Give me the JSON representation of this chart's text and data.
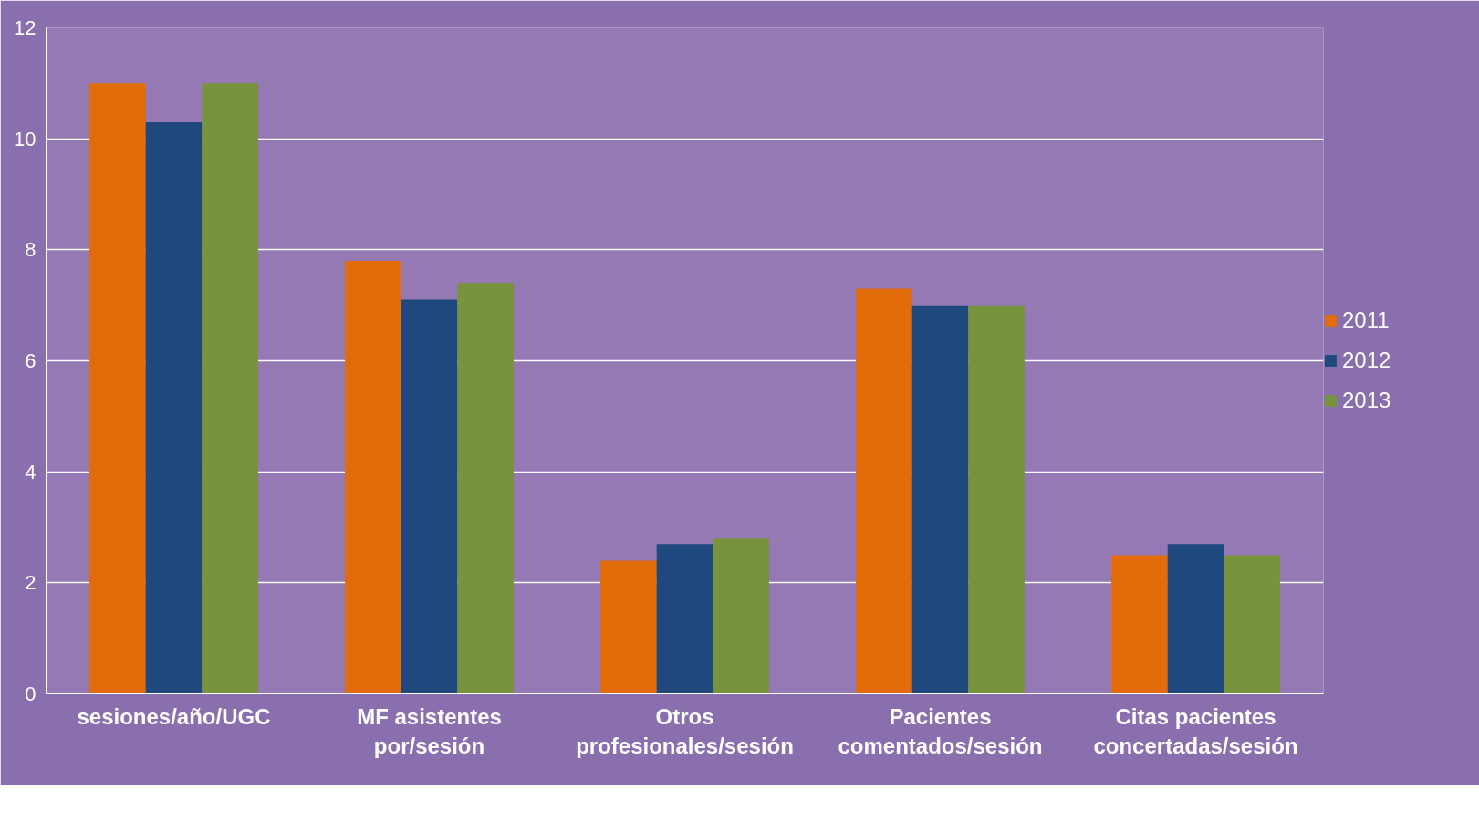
{
  "chart_data": {
    "type": "bar",
    "categories": [
      "sesiones/año/UGC",
      "MF asistentes por/sesión",
      "Otros profesionales/sesión",
      "Pacientes comentados/sesión",
      "Citas pacientes concertadas/sesión"
    ],
    "series": [
      {
        "name": "2011",
        "color": "#e36c0a",
        "values": [
          11,
          7.8,
          2.4,
          7.3,
          2.5
        ]
      },
      {
        "name": "2012",
        "color": "#1f497d",
        "values": [
          10.3,
          7.1,
          2.7,
          7.0,
          2.7
        ]
      },
      {
        "name": "2013",
        "color": "#77933c",
        "values": [
          11,
          7.4,
          2.8,
          7.0,
          2.5
        ]
      }
    ],
    "ylim": [
      0,
      12
    ],
    "yticks": [
      0,
      2,
      4,
      6,
      8,
      10,
      12
    ],
    "grid": "y",
    "legend": "right"
  }
}
